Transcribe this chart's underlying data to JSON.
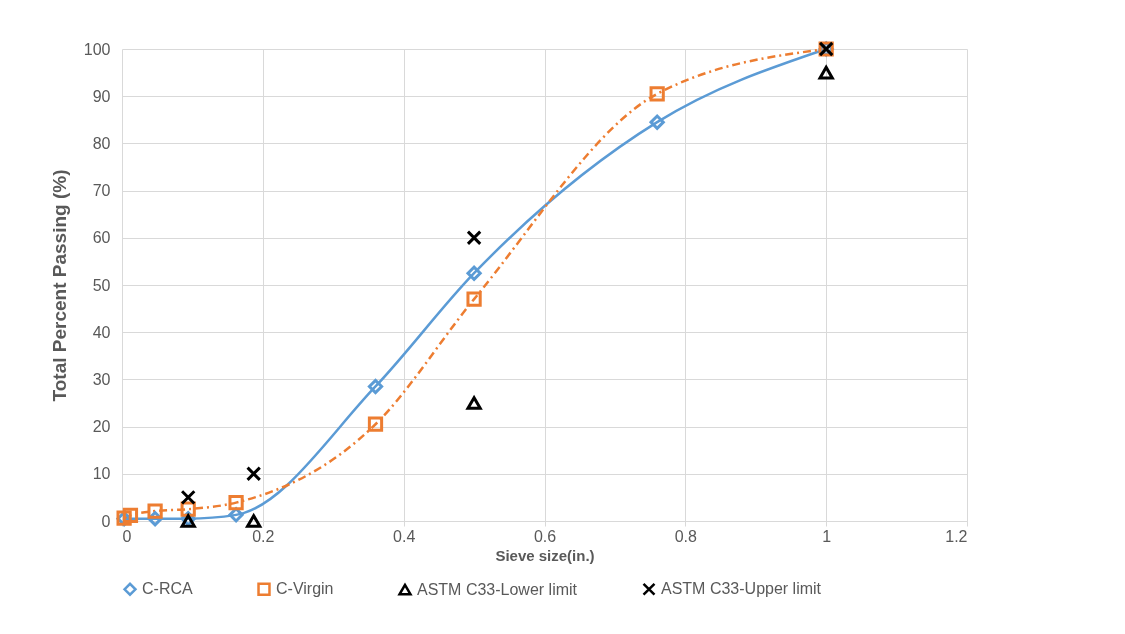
{
  "chart_data": {
    "type": "line",
    "xlabel": "Sieve size(in.)",
    "ylabel": "Total Percent Passing (%)",
    "xlim": [
      0,
      1.2
    ],
    "xticks": [
      0,
      0.2,
      0.4,
      0.6,
      0.8,
      1,
      1.2
    ],
    "ylim": [
      0,
      100
    ],
    "yticks": [
      0,
      10,
      20,
      30,
      40,
      50,
      60,
      70,
      80,
      90,
      100
    ],
    "grid": true,
    "legend": "bottom",
    "series": [
      {
        "name": "C-RCA",
        "color": "#5b9bd5",
        "marker": "diamond",
        "line_style": "solid",
        "x": [
          0.003,
          0.047,
          0.094,
          0.162,
          0.36,
          0.5,
          0.76,
          1
        ],
        "values": [
          0.5,
          0.5,
          0.5,
          1.3,
          28.5,
          52.5,
          84.5,
          100
        ]
      },
      {
        "name": "C-Virgin",
        "color": "#ed7d31",
        "marker": "square",
        "line_style": "dashed",
        "x": [
          0.003,
          0.012,
          0.047,
          0.094,
          0.162,
          0.36,
          0.5,
          0.76,
          1
        ],
        "values": [
          0.6,
          1.2,
          2.1,
          2.5,
          3.9,
          20.5,
          47,
          90.5,
          100
        ]
      },
      {
        "name": "ASTM C33-Lower limit",
        "type": "scatter",
        "color": "#000000",
        "marker": "triangle",
        "x": [
          0.094,
          0.187,
          0.5,
          1
        ],
        "values": [
          0,
          0,
          25,
          95
        ]
      },
      {
        "name": "ASTM C33-Upper limit",
        "type": "scatter",
        "color": "#000000",
        "marker": "cross",
        "x": [
          0.094,
          0.187,
          0.5,
          1
        ],
        "values": [
          5,
          10,
          60,
          100
        ]
      }
    ]
  }
}
